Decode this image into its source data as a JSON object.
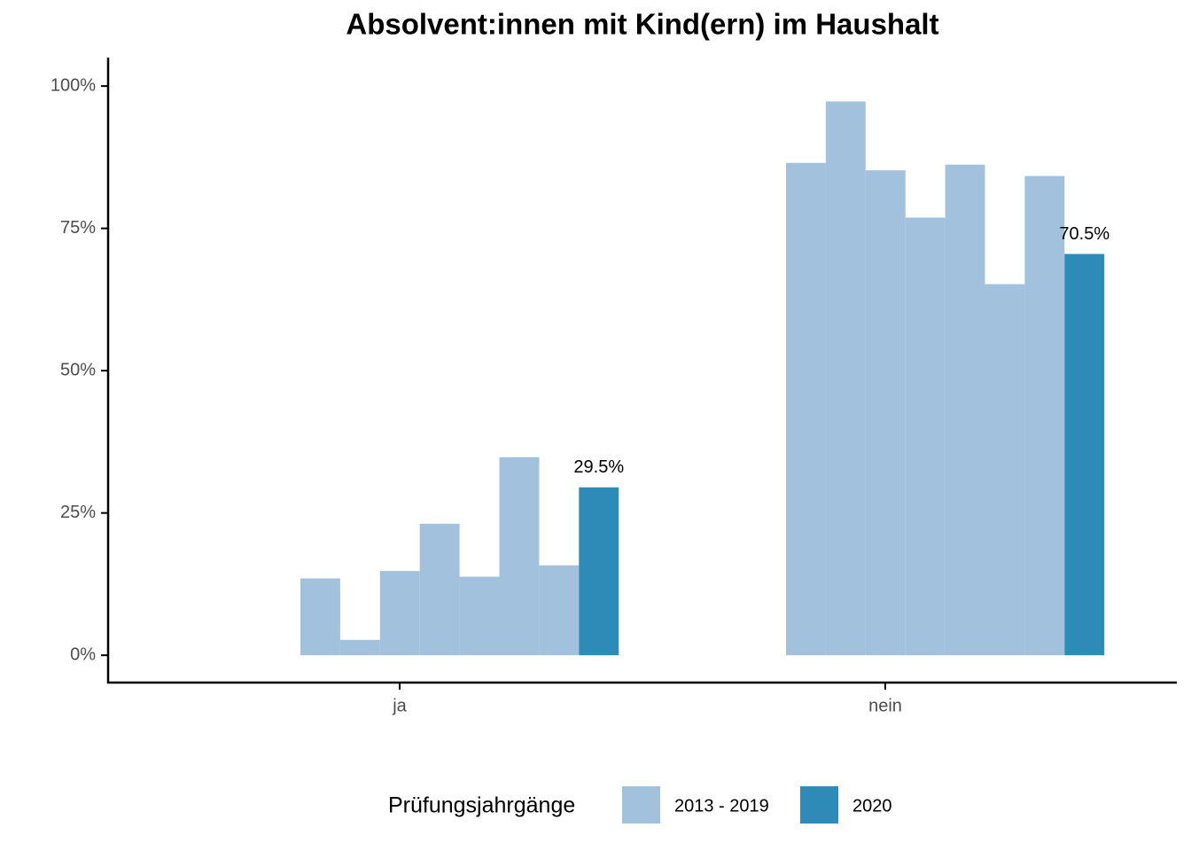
{
  "chart_data": {
    "type": "bar",
    "title": "Absolvent:innen mit Kind(ern) im Haushalt",
    "categories": [
      "ja",
      "nein"
    ],
    "series": [
      {
        "name": "2013 - 2019",
        "color": "#a1c1dc",
        "values": [
          [
            13.5,
            2.7,
            14.8,
            23.1,
            13.8,
            34.8,
            15.8
          ],
          [
            86.5,
            97.3,
            85.2,
            76.9,
            86.2,
            65.2,
            84.2
          ]
        ]
      },
      {
        "name": "2020",
        "color": "#2e8bb8",
        "values": [
          29.5,
          70.5
        ],
        "value_labels": [
          "29.5%",
          "70.5%"
        ]
      }
    ],
    "legend_title": "Prüfungsjahrgänge",
    "legend_position": "bottom",
    "ylim": [
      -4.8,
      105
    ],
    "yticks": [
      {
        "value": 0,
        "label": "0%"
      },
      {
        "value": 25,
        "label": "25%"
      },
      {
        "value": 50,
        "label": "50%"
      },
      {
        "value": 75,
        "label": "75%"
      },
      {
        "value": 100,
        "label": "100%"
      }
    ],
    "grid": false
  }
}
